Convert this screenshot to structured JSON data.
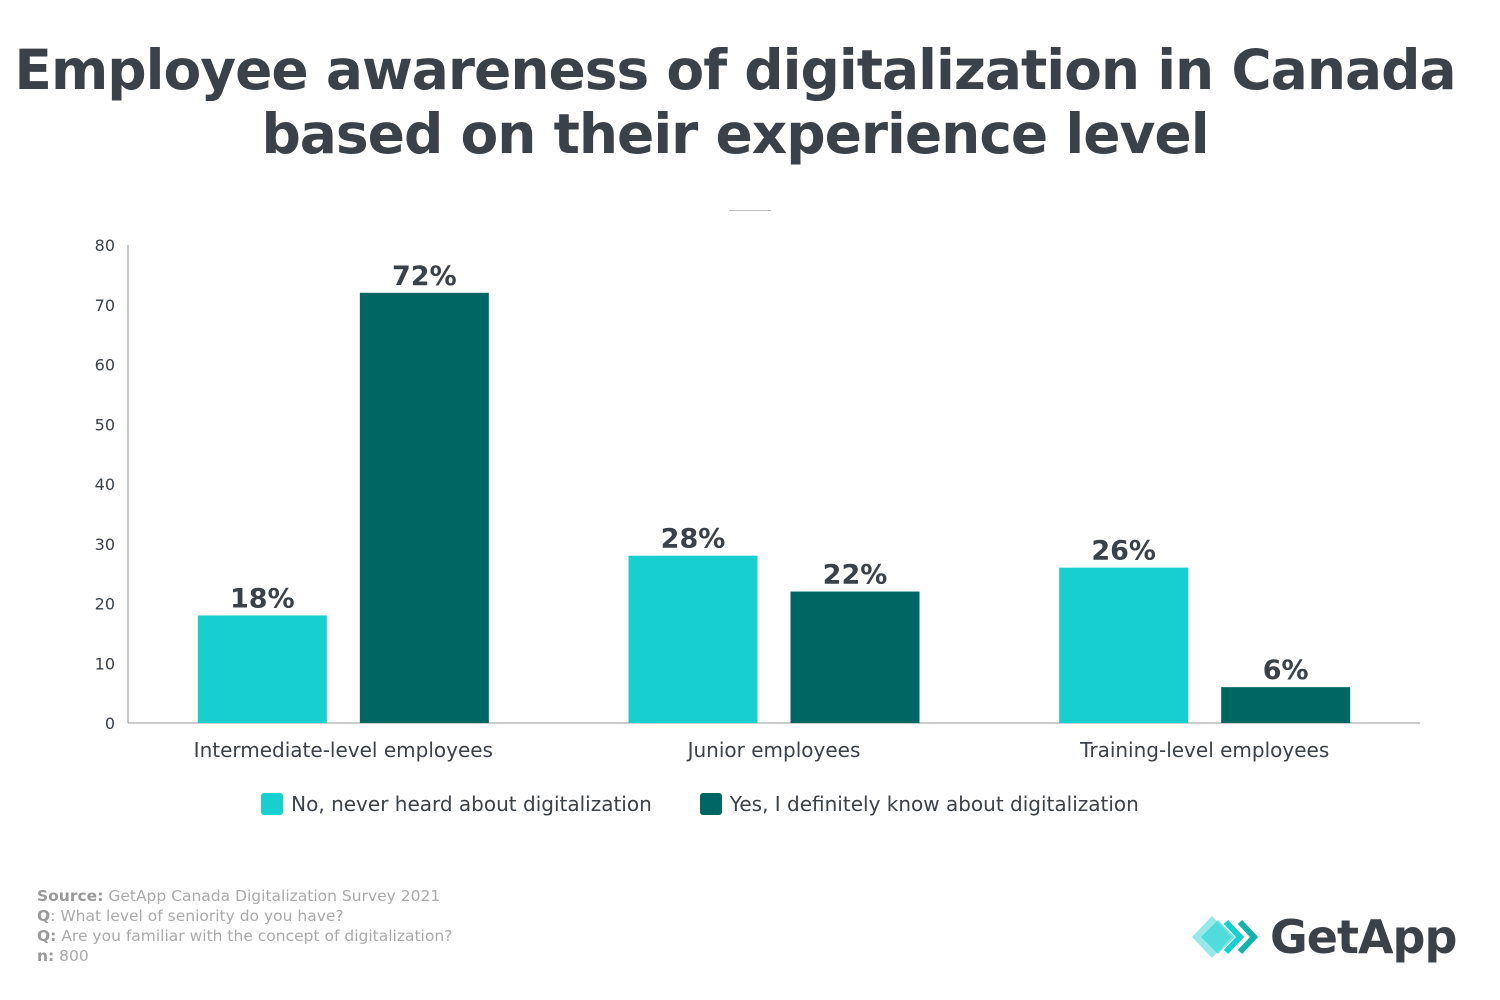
{
  "title": "Employee awareness of digitalization in Canada based on their experience level",
  "chart_data": {
    "type": "bar",
    "title": "Employee awareness of digitalization in Canada based on their experience level",
    "categories": [
      "Intermediate-level employees",
      "Junior employees",
      "Training-level employees"
    ],
    "series": [
      {
        "name": "No, never heard about digitalization",
        "values": [
          18,
          28,
          26
        ],
        "labels": [
          "18%",
          "28%",
          "26%"
        ],
        "color": "#18cfcf"
      },
      {
        "name": "Yes, I definitely know about digitalization",
        "values": [
          72,
          22,
          6
        ],
        "labels": [
          "72%",
          "22%",
          "6%"
        ],
        "color": "#006663"
      }
    ],
    "ylim": [
      0,
      80
    ],
    "yticks": [
      "0",
      "10",
      "20",
      "30",
      "40",
      "50",
      "60",
      "70",
      "80"
    ],
    "grid": false,
    "legend": "bottom",
    "xlabel": "",
    "ylabel": ""
  },
  "footer": {
    "source_label": "Source:",
    "source": "GetApp Canada Digitalization Survey 2021",
    "q1_label": "Q",
    "q1": ": What level of seniority do you have?",
    "q2_label": "Q:",
    "q2": "Are you familiar with the concept of digitalization?",
    "n_label": "n:",
    "n": "800"
  },
  "logo": {
    "text": "GetApp"
  }
}
